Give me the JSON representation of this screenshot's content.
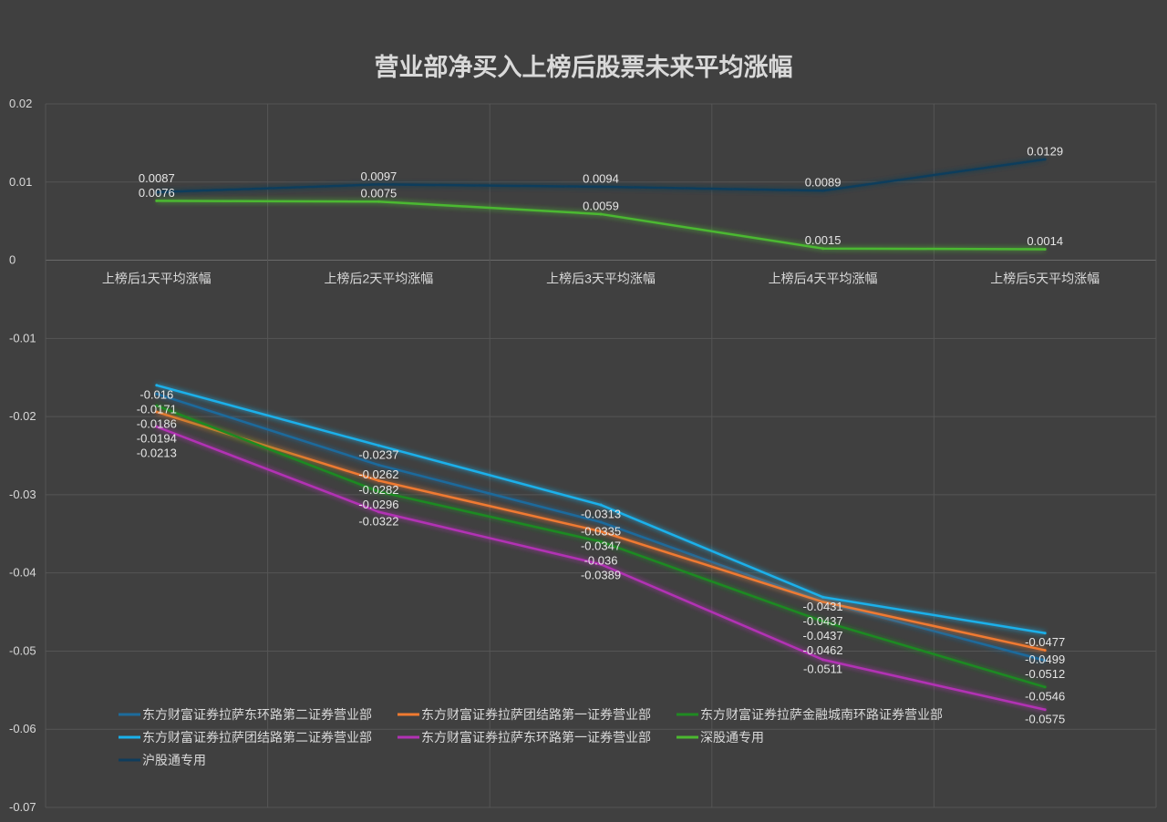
{
  "chart_data": {
    "type": "line",
    "title": "营业部净买入上榜后股票未来平均涨幅",
    "xlabel": "",
    "ylabel": "",
    "categories": [
      "上榜后1天平均涨幅",
      "上榜后2天平均涨幅",
      "上榜后3天平均涨幅",
      "上榜后4天平均涨幅",
      "上榜后5天平均涨幅"
    ],
    "ylim": [
      -0.07,
      0.02
    ],
    "yticks": [
      0.02,
      0.01,
      0,
      -0.01,
      -0.02,
      -0.03,
      -0.04,
      -0.05,
      -0.06,
      -0.07
    ],
    "ytick_labels": [
      "0.02",
      "0.01",
      "0",
      "-0.01",
      "-0.02",
      "-0.03",
      "-0.04",
      "-0.05",
      "-0.06",
      "-0.07"
    ],
    "grid": true,
    "legend_position": "bottom-left",
    "series": [
      {
        "name": "东方财富证券拉萨东环路第二证券营业部",
        "color": "#1d6b9c",
        "values": [
          -0.0171,
          -0.0262,
          -0.0335,
          -0.0437,
          -0.0512
        ]
      },
      {
        "name": "东方财富证券拉萨团结路第一证券营业部",
        "color": "#f07a30",
        "values": [
          -0.0194,
          -0.0282,
          -0.0347,
          -0.0437,
          -0.0499
        ]
      },
      {
        "name": "东方财富证券拉萨金融城南环路证券营业部",
        "color": "#1f8a22",
        "values": [
          -0.0186,
          -0.0296,
          -0.036,
          -0.0462,
          -0.0546
        ]
      },
      {
        "name": "东方财富证券拉萨团结路第二证券营业部",
        "color": "#1ab0ea",
        "values": [
          -0.016,
          -0.0237,
          -0.0313,
          -0.0431,
          -0.0477
        ]
      },
      {
        "name": "东方财富证券拉萨东环路第一证券营业部",
        "color": "#b232b4",
        "values": [
          -0.0213,
          -0.0322,
          -0.0389,
          -0.0511,
          -0.0575
        ]
      },
      {
        "name": "深股通专用",
        "color": "#4cb830",
        "values": [
          0.0076,
          0.0075,
          0.0059,
          0.0015,
          0.0014
        ]
      },
      {
        "name": "沪股通专用",
        "color": "#0f3d5c",
        "values": [
          0.0087,
          0.0097,
          0.0094,
          0.0089,
          0.0129
        ]
      }
    ]
  }
}
